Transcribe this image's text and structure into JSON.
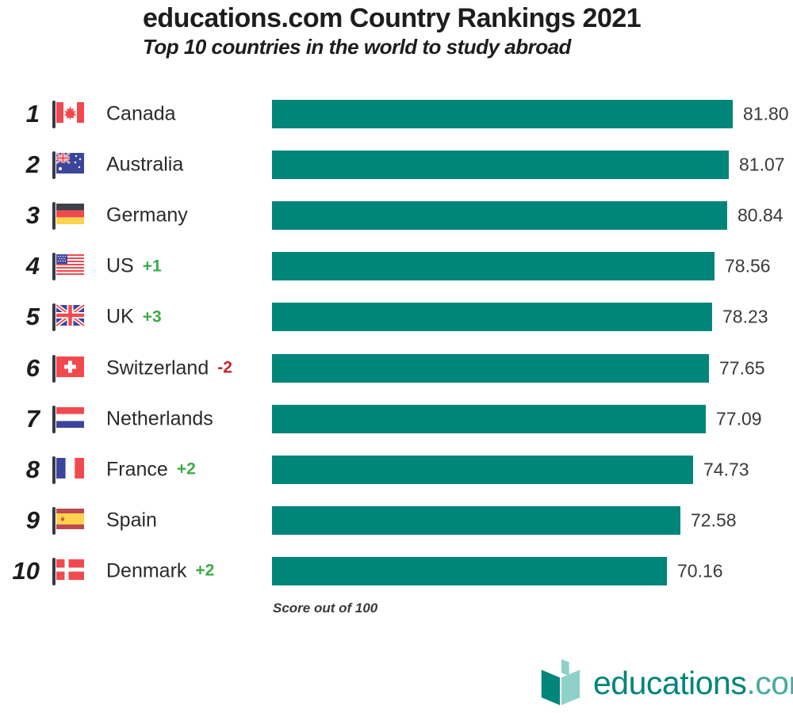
{
  "header": {
    "title": "educations.com Country Rankings 2021",
    "subtitle": "Top 10 countries in the world to study abroad"
  },
  "chart_data": {
    "type": "bar",
    "orientation": "horizontal",
    "title": "educations.com Country Rankings 2021",
    "subtitle": "Top 10 countries in the world to study abroad",
    "xlabel": "Score out of 100",
    "xlim": [
      0,
      100
    ],
    "grid": false,
    "legend": "none",
    "footnote": "Score out of 100",
    "rows": [
      {
        "rank": 1,
        "country": "Canada",
        "flag": "canada",
        "change": null,
        "value": 81.8,
        "value_label": "81.80"
      },
      {
        "rank": 2,
        "country": "Australia",
        "flag": "australia",
        "change": null,
        "value": 81.07,
        "value_label": "81.07"
      },
      {
        "rank": 3,
        "country": "Germany",
        "flag": "germany",
        "change": null,
        "value": 80.84,
        "value_label": "80.84"
      },
      {
        "rank": 4,
        "country": "US",
        "flag": "us",
        "change": "+1",
        "value": 78.56,
        "value_label": "78.56"
      },
      {
        "rank": 5,
        "country": "UK",
        "flag": "uk",
        "change": "+3",
        "value": 78.23,
        "value_label": "78.23"
      },
      {
        "rank": 6,
        "country": "Switzerland",
        "flag": "switzerland",
        "change": "-2",
        "value": 77.65,
        "value_label": "77.65"
      },
      {
        "rank": 7,
        "country": "Netherlands",
        "flag": "netherlands",
        "change": null,
        "value": 77.09,
        "value_label": "77.09"
      },
      {
        "rank": 8,
        "country": "France",
        "flag": "france",
        "change": "+2",
        "value": 74.73,
        "value_label": "74.73"
      },
      {
        "rank": 9,
        "country": "Spain",
        "flag": "spain",
        "change": null,
        "value": 72.58,
        "value_label": "72.58"
      },
      {
        "rank": 10,
        "country": "Denmark",
        "flag": "denmark",
        "change": "+2",
        "value": 70.16,
        "value_label": "70.16"
      }
    ]
  },
  "colors": {
    "bar": "#00857B",
    "positive_change": "#3BAC47",
    "negative_change": "#C4242B",
    "brand_dark": "#00857B",
    "brand_mid": "#4BAAA0",
    "brand_light": "#8FD0C8"
  },
  "footer": {
    "logo_text": "educations",
    "logo_suffix": ".com"
  }
}
